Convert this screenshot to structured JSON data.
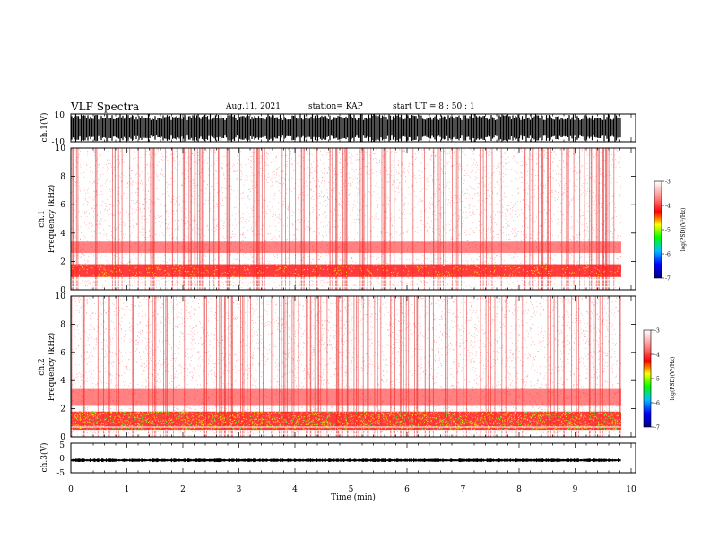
{
  "header": {
    "title": "VLF Spectra",
    "date": "Aug.11, 2021",
    "station": "station= KAP",
    "start_ut": "start  UT =   8 : 50 : 1"
  },
  "colors": {
    "spectrum_scale": [
      "#000080",
      "#0000ff",
      "#00c0ff",
      "#00ff00",
      "#ffff00",
      "#ff0000",
      "#ff8080",
      "#ffffff"
    ],
    "waveform": "#000000",
    "axis": "#000000"
  },
  "chart_data": [
    {
      "type": "line",
      "name": "ch1-waveform",
      "ylabel": "ch.1(V)",
      "ylim": [
        -10,
        10
      ],
      "xlim": [
        0,
        10
      ],
      "ytick_labels": [
        "10",
        "-10"
      ],
      "description_values": {
        "envelope_low": -10,
        "envelope_high": 10
      }
    },
    {
      "type": "heatmap",
      "name": "ch1-spectrogram",
      "ylabel_line1": "ch.1",
      "ylabel_line2": "Frequency  (kHz)",
      "ylim": [
        0,
        10
      ],
      "xlim": [
        0,
        10
      ],
      "ytick_labels": [
        "0",
        "2",
        "4",
        "6",
        "8",
        "10"
      ],
      "colorbar": {
        "label": "log(PSD)(V²/Hz)",
        "range": [
          -7,
          -3
        ],
        "tick_labels": [
          "-3",
          "-4",
          "-5",
          "-6",
          "-7"
        ]
      },
      "bands_khz": [
        [
          0.9,
          1.8
        ],
        [
          2.6,
          3.4
        ]
      ]
    },
    {
      "type": "heatmap",
      "name": "ch2-spectrogram",
      "ylabel_line1": "ch.2",
      "ylabel_line2": "Frequency  (kHz)",
      "ylim": [
        0,
        10
      ],
      "xlim": [
        0,
        10
      ],
      "ytick_labels": [
        "0",
        "2",
        "4",
        "6",
        "8",
        "10"
      ],
      "colorbar": {
        "label": "log(PSD)(V²/Hz)",
        "range": [
          -7,
          -3
        ],
        "tick_labels": [
          "-3",
          "-4",
          "-5",
          "-6",
          "-7"
        ]
      },
      "bands_khz": [
        [
          0.5,
          1.8
        ],
        [
          2.2,
          3.4
        ]
      ]
    },
    {
      "type": "line",
      "name": "ch3-waveform",
      "ylabel": "ch.3(V)",
      "ylim": [
        -5,
        5
      ],
      "xlim": [
        0,
        10
      ],
      "ytick_labels": [
        "5",
        "0",
        "-5"
      ],
      "xlabel": "Time  (min)",
      "xtick_labels": [
        "0",
        "1",
        "2",
        "3",
        "4",
        "5",
        "6",
        "7",
        "8",
        "9",
        "10"
      ],
      "baseline_value": -0.8
    }
  ]
}
